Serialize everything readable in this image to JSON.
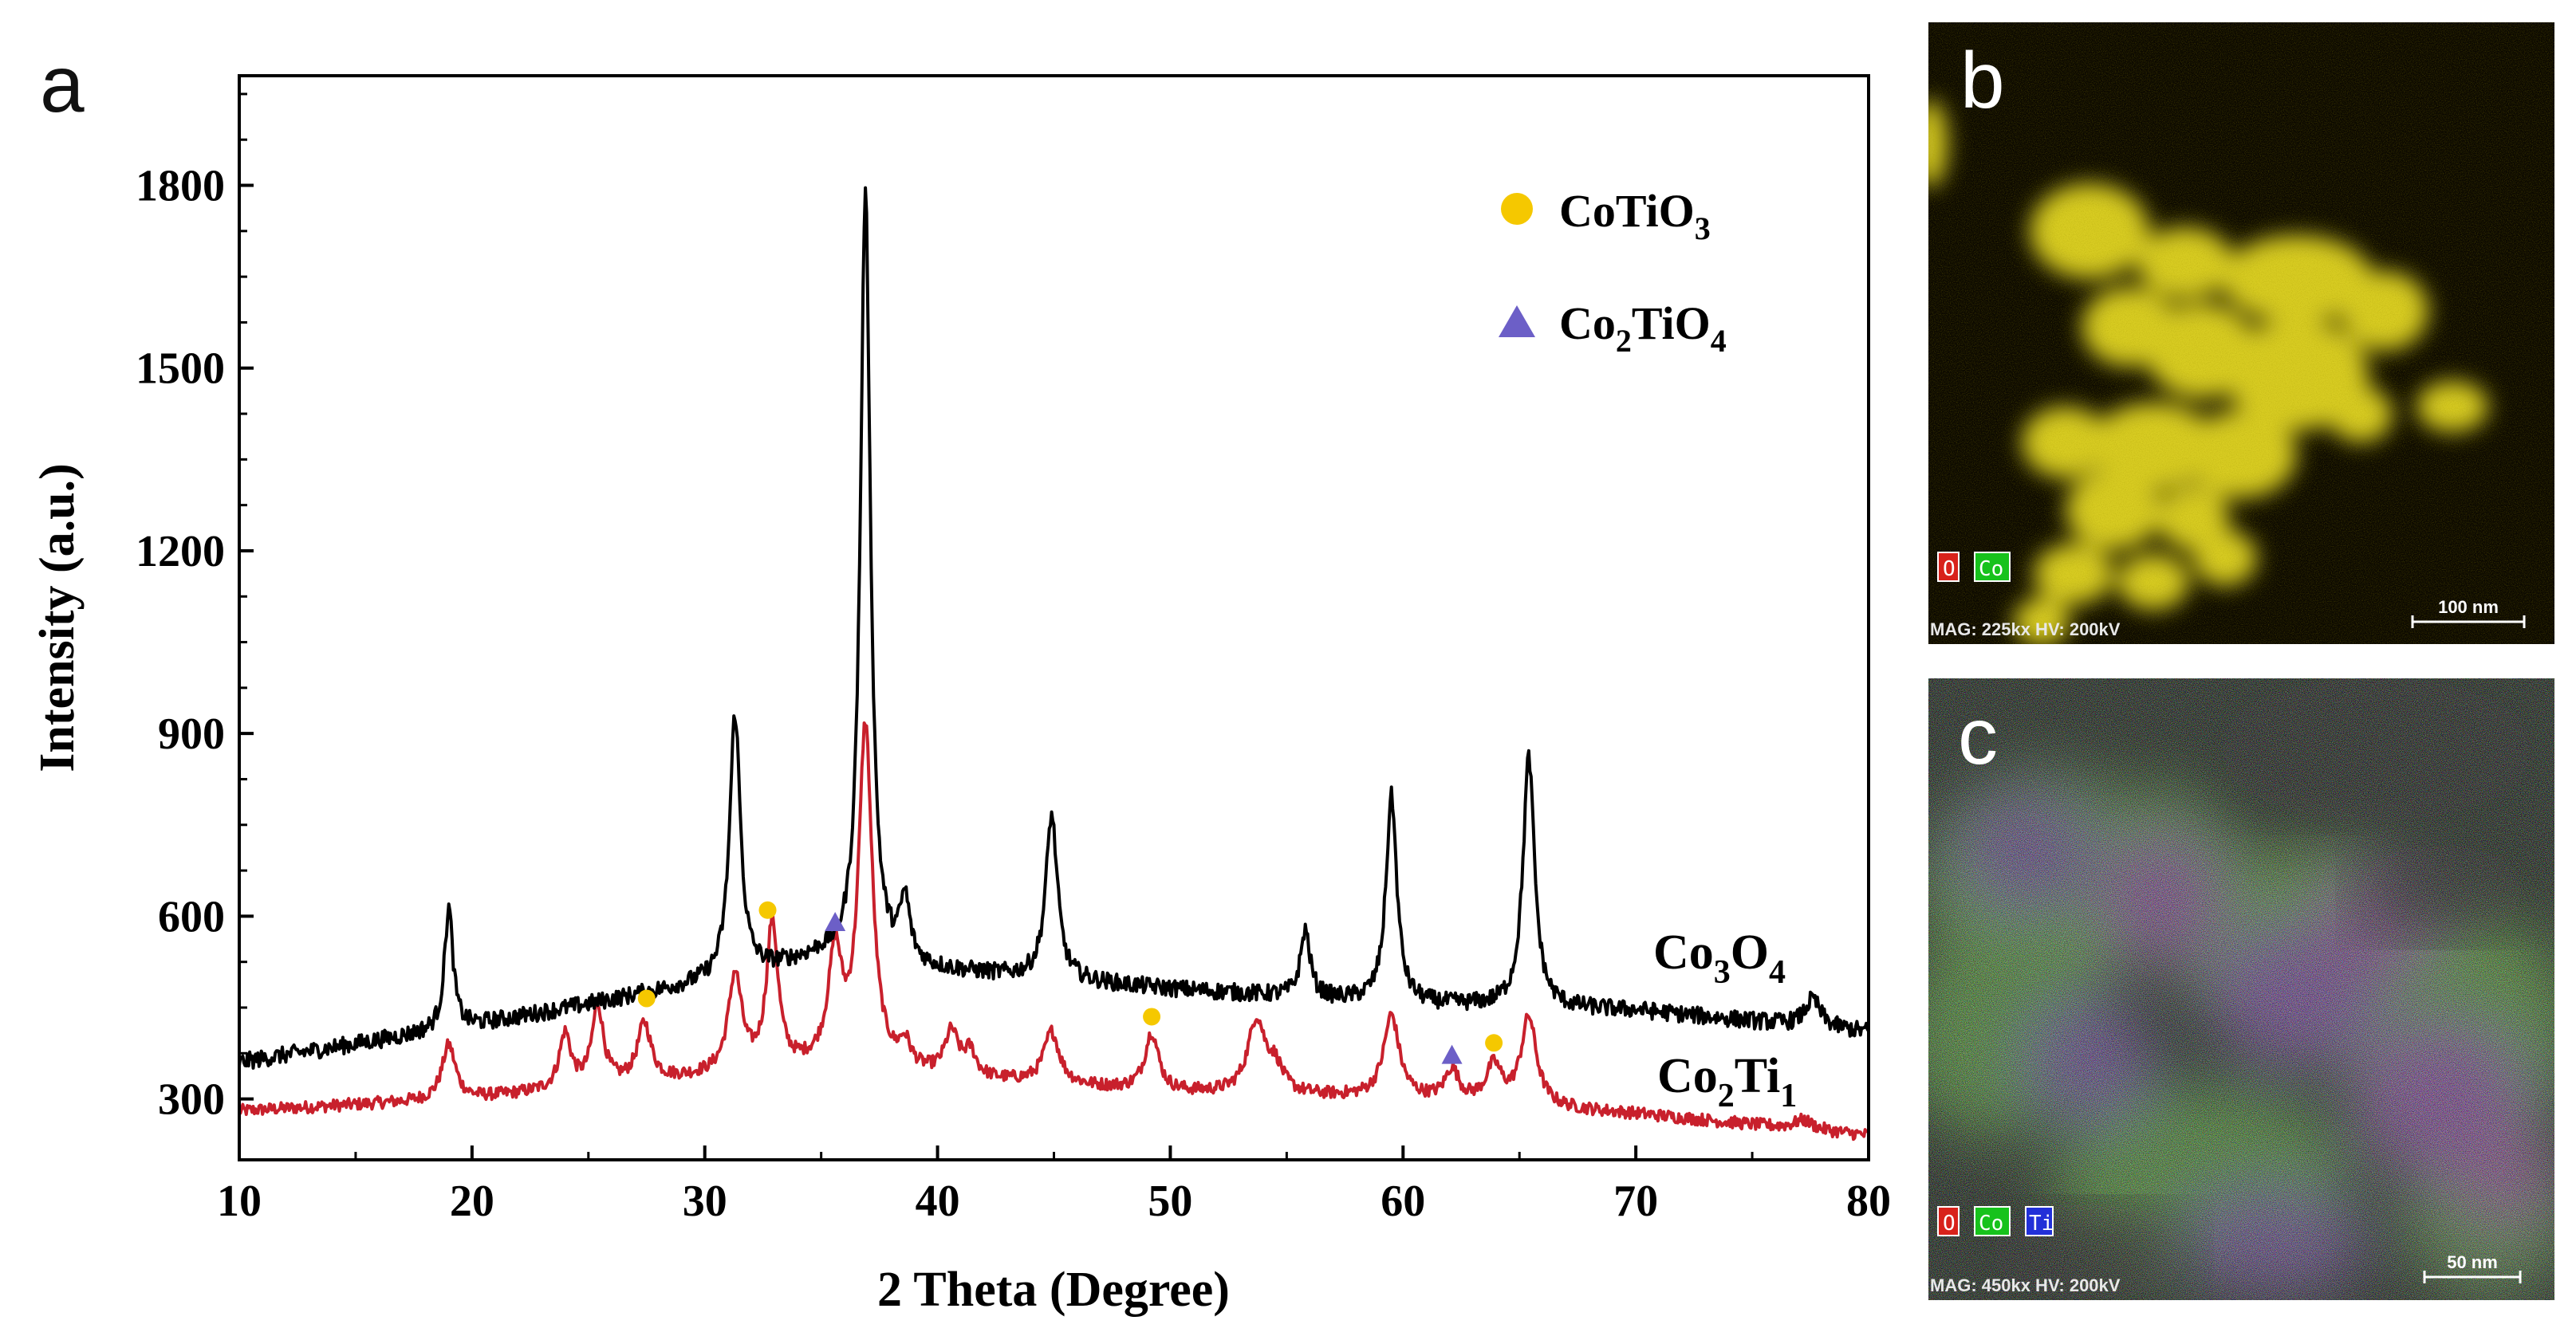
{
  "figure": {
    "panels": {
      "a": {
        "label": "a"
      },
      "b": {
        "label": "b",
        "legend": [
          "O",
          "Co"
        ],
        "scale_bar": "100 nm",
        "footer": "MAG: 225kx  HV: 200kV"
      },
      "c": {
        "label": "c",
        "legend": [
          "O",
          "Co",
          "Ti"
        ],
        "scale_bar": "50 nm",
        "footer": "MAG: 450kx  HV: 200kV"
      }
    }
  },
  "colors": {
    "co3o4": "#000000",
    "co2ti1": "#c8202c",
    "cotio3_marker": "#f5c800",
    "co2tio4_marker": "#6c5fc7",
    "map_b_particles": "#d8cc22",
    "map_c_o": "#ff2020",
    "map_c_co": "#20e020",
    "map_c_ti": "#3030ff"
  },
  "chart_data": {
    "type": "line",
    "title": "",
    "xlabel": "2 Theta (Degree)",
    "ylabel": "Intensity (a.u.)",
    "xlim": [
      10,
      80
    ],
    "ylim": [
      200,
      1980
    ],
    "xticks": [
      10,
      20,
      30,
      40,
      50,
      60,
      70,
      80
    ],
    "yticks": [
      300,
      600,
      900,
      1200,
      1500,
      1800
    ],
    "legend": [
      {
        "marker": "circle",
        "label_main": "CoTiO",
        "label_sub": "3",
        "label_tail": ""
      },
      {
        "marker": "triangle",
        "label_main": "Co",
        "label_sub": "2",
        "label_tail": "TiO",
        "label_sub2": "4"
      }
    ],
    "series": [
      {
        "name": "Co3O4",
        "label_parts": [
          "Co",
          "3",
          "O",
          "4"
        ],
        "baseline": [
          [
            10,
            360
          ],
          [
            20,
            420
          ],
          [
            30,
            490
          ],
          [
            35,
            530
          ],
          [
            40,
            510
          ],
          [
            50,
            480
          ],
          [
            60,
            455
          ],
          [
            70,
            445
          ],
          [
            80,
            410
          ]
        ],
        "noise": 14,
        "peaks": [
          [
            19.0,
            200,
            0.22
          ],
          [
            31.3,
            430,
            0.28
          ],
          [
            36.9,
            1260,
            0.26
          ],
          [
            38.6,
            100,
            0.25
          ],
          [
            44.9,
            270,
            0.3
          ],
          [
            55.8,
            110,
            0.25
          ],
          [
            59.5,
            340,
            0.28
          ],
          [
            65.4,
            410,
            0.3
          ],
          [
            77.6,
            45,
            0.4
          ]
        ]
      },
      {
        "name": "Co2Ti1",
        "label_parts": [
          "Co",
          "2",
          "Ti",
          "1"
        ],
        "baseline": [
          [
            10,
            280
          ],
          [
            20,
            300
          ],
          [
            30,
            335
          ],
          [
            35,
            350
          ],
          [
            40,
            335
          ],
          [
            50,
            310
          ],
          [
            60,
            300
          ],
          [
            70,
            275
          ],
          [
            80,
            240
          ]
        ],
        "noise": 10,
        "peaks": [
          [
            19.0,
            90,
            0.35
          ],
          [
            24.0,
            90,
            0.3
          ],
          [
            25.4,
            130,
            0.3
          ],
          [
            27.4,
            95,
            0.35
          ],
          [
            31.3,
            160,
            0.35
          ],
          [
            32.9,
            240,
            0.3
          ],
          [
            35.6,
            180,
            0.35
          ],
          [
            36.9,
            560,
            0.35
          ],
          [
            38.6,
            40,
            0.3
          ],
          [
            40.6,
            70,
            0.35
          ],
          [
            41.4,
            40,
            0.3
          ],
          [
            44.9,
            85,
            0.4
          ],
          [
            49.2,
            95,
            0.35
          ],
          [
            53.7,
            120,
            0.45
          ],
          [
            54.5,
            40,
            0.4
          ],
          [
            59.5,
            135,
            0.4
          ],
          [
            62.1,
            50,
            0.35
          ],
          [
            63.9,
            60,
            0.4
          ],
          [
            65.4,
            145,
            0.4
          ],
          [
            77.2,
            15,
            0.5
          ]
        ]
      }
    ],
    "cotio3_markers": [
      [
        27.5,
        465
      ],
      [
        32.7,
        610
      ],
      [
        49.2,
        435
      ],
      [
        63.9,
        392
      ]
    ],
    "co2tio4_markers": [
      [
        35.6,
        590
      ],
      [
        62.1,
        372
      ]
    ]
  }
}
